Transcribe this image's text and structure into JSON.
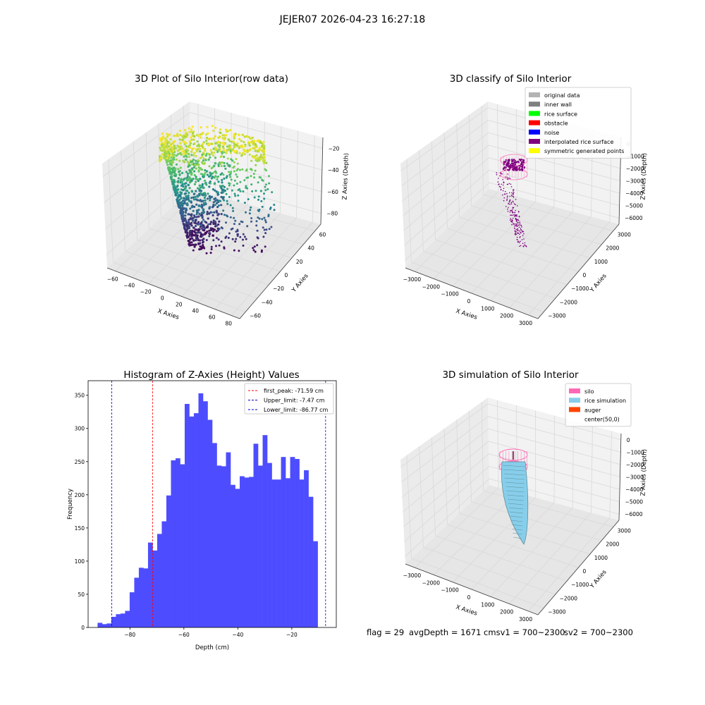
{
  "figure": {
    "suptitle": "JEJER07 2026-04-23 16:27:18",
    "footer": {
      "flag": "flag = 29",
      "avg_depth": "avgDepth = 1671 cmsv1 = 700~2300",
      "sv2": "sv2 = 700~2300"
    }
  },
  "colors": {
    "hist_bar": "#4d4dff",
    "peak_line": "#ff0000",
    "limit_line": "#0000cc",
    "pane_face": "#f2f2f2",
    "grid": "#d9d9d9",
    "silo_pink": "#ff69b4",
    "purple": "#800080",
    "rice": "#87ceeb",
    "rice_shade": "#5f8f99"
  },
  "chart_data": [
    {
      "type": "scatter",
      "title": "3D Plot of Silo Interior(row data)",
      "xlabel": "X Axies",
      "ylabel": "Y Axies",
      "zlabel": "Z Axies (Depth)",
      "x_ticks": [
        "−60",
        "−40",
        "−20",
        "0",
        "20",
        "40",
        "60",
        "80"
      ],
      "y_ticks": [
        "−60",
        "−40",
        "−20",
        "0",
        "20",
        "40",
        "60"
      ],
      "z_ticks": [
        "−80",
        "−60",
        "−40",
        "−20"
      ],
      "colormap": "viridis"
    },
    {
      "type": "scatter",
      "title": "3D classify of Silo Interior",
      "xlabel": "X Axies",
      "ylabel": "Y Axies",
      "zlabel": "Z Axies (Depth)",
      "x_ticks": [
        "−3000",
        "−2000",
        "−1000",
        "0",
        "1000",
        "2000",
        "3000"
      ],
      "y_ticks": [
        "−3000",
        "−2000",
        "−1000",
        "0",
        "1000",
        "2000",
        "3000"
      ],
      "z_ticks": [
        "−6000",
        "−5000",
        "−4000",
        "−3000",
        "−2000",
        "−1000",
        "0"
      ],
      "legend_position": "top-right",
      "legend": [
        {
          "label": "original data",
          "color": "#b3b3b3"
        },
        {
          "label": "inner wall",
          "color": "#808080"
        },
        {
          "label": "rice surface",
          "color": "#00ff00"
        },
        {
          "label": "obstacle",
          "color": "#ff0000"
        },
        {
          "label": "noise",
          "color": "#0000ff"
        },
        {
          "label": "interpolated rice surface",
          "color": "#800080"
        },
        {
          "label": "symmetric generated points",
          "color": "#ffff00"
        }
      ]
    },
    {
      "type": "bar",
      "title": "Histogram of Z-Axies (Height) Values",
      "xlabel": "Depth (cm)",
      "ylabel": "Frequency",
      "xlim": [
        -95.5,
        -3.5
      ],
      "ylim": [
        0,
        372
      ],
      "x_ticks": [
        -80,
        -60,
        -40,
        -20
      ],
      "x_tick_labels": [
        "−80",
        "−60",
        "−40",
        "−20"
      ],
      "y_ticks": [
        0,
        50,
        100,
        150,
        200,
        250,
        300,
        350
      ],
      "bin_start": -92,
      "bin_width": 1.7,
      "values": [
        7,
        5,
        6,
        16,
        20,
        21,
        25,
        53,
        75,
        90,
        89,
        128,
        116,
        141,
        160,
        199,
        252,
        255,
        246,
        337,
        318,
        323,
        353,
        341,
        313,
        278,
        244,
        243,
        264,
        215,
        209,
        228,
        226,
        227,
        277,
        244,
        290,
        248,
        223,
        223,
        257,
        225,
        257,
        254,
        223,
        237,
        197,
        130
      ],
      "vlines": [
        {
          "x": -71.59,
          "label": "first_peak: -71.59 cm",
          "color": "#ff0000"
        },
        {
          "x": -7.47,
          "label": "Upper_limit: -7.47 cm",
          "color": "#0000cc"
        },
        {
          "x": -86.77,
          "label": "Lower_limit: -86.77 cm",
          "color": "#0000cc"
        }
      ],
      "legend_position": "top-right"
    },
    {
      "type": "area",
      "title": "3D simulation of Silo Interior",
      "xlabel": "X Axies",
      "ylabel": "Y Axies",
      "zlabel": "Z Axies (Depth)",
      "x_ticks": [
        "−3000",
        "−2000",
        "−1000",
        "0",
        "1000",
        "2000",
        "3000"
      ],
      "y_ticks": [
        "−3000",
        "−2000",
        "−1000",
        "0",
        "1000",
        "2000",
        "3000"
      ],
      "z_ticks": [
        "−6000",
        "−5000",
        "−4000",
        "−3000",
        "−2000",
        "−1000",
        "0"
      ],
      "legend_position": "top-right",
      "legend": [
        {
          "label": "silo",
          "color": "#ff69b4"
        },
        {
          "label": "rice simulation",
          "color": "#87ceeb"
        },
        {
          "label": "auger",
          "color": "#ff4500"
        },
        {
          "label": "center(50,0)",
          "color": "#ffffff"
        }
      ]
    }
  ]
}
